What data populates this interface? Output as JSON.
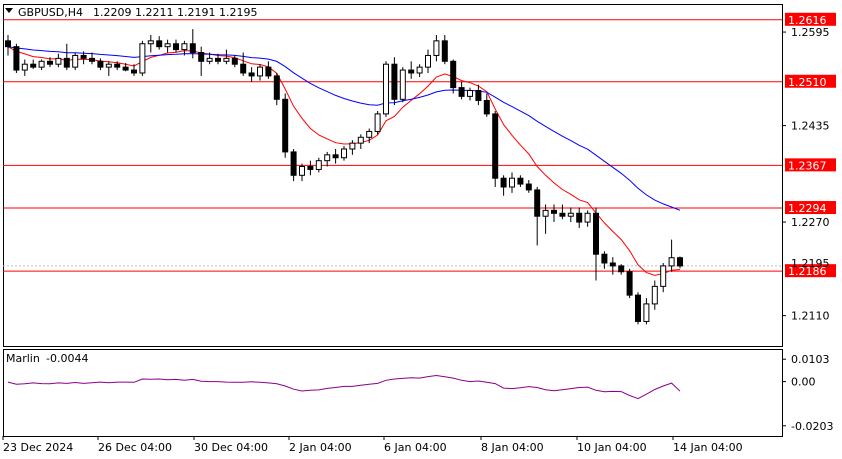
{
  "header": {
    "symbol": "GBPUSD,H4",
    "ohlc": "1.2209 1.2211 1.2191 1.2195"
  },
  "indicator": {
    "name": "Marlin",
    "value": "-0.0044"
  },
  "colors": {
    "level": "#ff0000",
    "ma_fast": "#ff0000",
    "ma_slow": "#0000ff",
    "oscillator": "#8b008b",
    "bull": "#ffffff",
    "bear": "#000000",
    "grid": "#c0c0c0"
  },
  "chart_data": {
    "type": "candlestick",
    "price_axis": {
      "min": 1.2058,
      "max": 1.2643,
      "ticks": [
        "1.2595",
        "1.2435",
        "1.2270",
        "1.2110"
      ]
    },
    "current_price": "1.2195",
    "levels": [
      "1.2616",
      "1.2510",
      "1.2367",
      "1.2294",
      "1.2186"
    ],
    "x_labels": [
      "23 Dec 2024",
      "26 Dec 04:00",
      "30 Dec 04:00",
      "2 Jan 04:00",
      "6 Jan 04:00",
      "8 Jan 04:00",
      "10 Jan 04:00",
      "14 Jan 04:00"
    ],
    "candles": [
      [
        1.258,
        1.259,
        1.2555,
        1.257
      ],
      [
        1.257,
        1.2575,
        1.2525,
        1.253
      ],
      [
        1.253,
        1.2548,
        1.252,
        1.254
      ],
      [
        1.254,
        1.2548,
        1.2532,
        1.2535
      ],
      [
        1.2535,
        1.2548,
        1.253,
        1.2545
      ],
      [
        1.2545,
        1.2552,
        1.2535,
        1.254
      ],
      [
        1.254,
        1.2558,
        1.2535,
        1.255
      ],
      [
        1.255,
        1.2575,
        1.253,
        1.2535
      ],
      [
        1.2535,
        1.256,
        1.253,
        1.2555
      ],
      [
        1.2555,
        1.2562,
        1.254,
        1.255
      ],
      [
        1.255,
        1.256,
        1.254,
        1.2545
      ],
      [
        1.2545,
        1.255,
        1.253,
        1.2535
      ],
      [
        1.2535,
        1.2545,
        1.252,
        1.254
      ],
      [
        1.254,
        1.2545,
        1.253,
        1.2535
      ],
      [
        1.2535,
        1.2542,
        1.2528,
        1.253
      ],
      [
        1.253,
        1.254,
        1.252,
        1.2525
      ],
      [
        1.2525,
        1.258,
        1.252,
        1.2575
      ],
      [
        1.2575,
        1.259,
        1.256,
        1.258
      ],
      [
        1.258,
        1.2588,
        1.2565,
        1.257
      ],
      [
        1.257,
        1.2582,
        1.256,
        1.2575
      ],
      [
        1.2575,
        1.2582,
        1.256,
        1.2565
      ],
      [
        1.2565,
        1.258,
        1.2555,
        1.2575
      ],
      [
        1.2575,
        1.26,
        1.255,
        1.256
      ],
      [
        1.256,
        1.257,
        1.252,
        1.2545
      ],
      [
        1.2545,
        1.256,
        1.254,
        1.255
      ],
      [
        1.255,
        1.2558,
        1.254,
        1.2545
      ],
      [
        1.2545,
        1.2565,
        1.254,
        1.255
      ],
      [
        1.255,
        1.2555,
        1.2535,
        1.254
      ],
      [
        1.254,
        1.256,
        1.252,
        1.2525
      ],
      [
        1.2525,
        1.2535,
        1.251,
        1.252
      ],
      [
        1.252,
        1.254,
        1.2512,
        1.2535
      ],
      [
        1.2535,
        1.2545,
        1.2515,
        1.252
      ],
      [
        1.252,
        1.2525,
        1.247,
        1.248
      ],
      [
        1.248,
        1.249,
        1.238,
        1.239
      ],
      [
        1.239,
        1.2395,
        1.234,
        1.235
      ],
      [
        1.235,
        1.237,
        1.234,
        1.2365
      ],
      [
        1.2365,
        1.2375,
        1.235,
        1.236
      ],
      [
        1.236,
        1.238,
        1.2355,
        1.2375
      ],
      [
        1.2375,
        1.239,
        1.2365,
        1.2385
      ],
      [
        1.2385,
        1.2395,
        1.237,
        1.238
      ],
      [
        1.238,
        1.24,
        1.2375,
        1.2395
      ],
      [
        1.2395,
        1.241,
        1.2385,
        1.2405
      ],
      [
        1.2405,
        1.242,
        1.2395,
        1.2415
      ],
      [
        1.2415,
        1.243,
        1.2405,
        1.2425
      ],
      [
        1.2425,
        1.246,
        1.242,
        1.2455
      ],
      [
        1.2455,
        1.2545,
        1.245,
        1.254
      ],
      [
        1.254,
        1.2552,
        1.247,
        1.248
      ],
      [
        1.248,
        1.2535,
        1.2475,
        1.253
      ],
      [
        1.253,
        1.2545,
        1.2515,
        1.2525
      ],
      [
        1.2525,
        1.254,
        1.2518,
        1.2535
      ],
      [
        1.2535,
        1.2565,
        1.2525,
        1.2555
      ],
      [
        1.2555,
        1.259,
        1.2545,
        1.258
      ],
      [
        1.258,
        1.259,
        1.254,
        1.2545
      ],
      [
        1.2545,
        1.2548,
        1.249,
        1.25
      ],
      [
        1.25,
        1.251,
        1.248,
        1.2485
      ],
      [
        1.2485,
        1.25,
        1.2478,
        1.2495
      ],
      [
        1.2495,
        1.2505,
        1.247,
        1.2478
      ],
      [
        1.2478,
        1.249,
        1.245,
        1.2455
      ],
      [
        1.2455,
        1.246,
        1.233,
        1.2345
      ],
      [
        1.2345,
        1.235,
        1.2315,
        1.233
      ],
      [
        1.233,
        1.2355,
        1.232,
        1.2345
      ],
      [
        1.2345,
        1.235,
        1.233,
        1.2335
      ],
      [
        1.2335,
        1.2342,
        1.232,
        1.2325
      ],
      [
        1.2325,
        1.233,
        1.223,
        1.228
      ],
      [
        1.228,
        1.23,
        1.225,
        1.229
      ],
      [
        1.229,
        1.23,
        1.227,
        1.2285
      ],
      [
        1.2285,
        1.23,
        1.2275,
        1.228
      ],
      [
        1.228,
        1.2295,
        1.227,
        1.2285
      ],
      [
        1.2285,
        1.2295,
        1.226,
        1.227
      ],
      [
        1.227,
        1.229,
        1.2262,
        1.2285
      ],
      [
        1.2285,
        1.2295,
        1.217,
        1.2215
      ],
      [
        1.2215,
        1.222,
        1.219,
        1.22
      ],
      [
        1.22,
        1.221,
        1.218,
        1.2195
      ],
      [
        1.2195,
        1.2198,
        1.218,
        1.2185
      ],
      [
        1.2185,
        1.219,
        1.214,
        1.2145
      ],
      [
        1.2145,
        1.215,
        1.2095,
        1.21
      ],
      [
        1.21,
        1.214,
        1.2095,
        1.213
      ],
      [
        1.213,
        1.217,
        1.212,
        1.216
      ],
      [
        1.216,
        1.22,
        1.215,
        1.2195
      ],
      [
        1.2195,
        1.224,
        1.2185,
        1.2209
      ],
      [
        1.2209,
        1.2211,
        1.2191,
        1.2195
      ]
    ],
    "oscillator": {
      "axis": {
        "min": -0.025,
        "max": 0.015,
        "ticks": [
          "0.0103",
          "0.00",
          "-0.0203"
        ]
      },
      "values": [
        -0.0002,
        -0.0012,
        -0.001,
        -0.0006,
        -0.0009,
        -0.001,
        -0.0006,
        -0.0008,
        -0.0004,
        -0.0008,
        -0.0005,
        -0.0002,
        -0.0005,
        -0.0002,
        -0.0002,
        -0.0003,
        0.0012,
        0.0011,
        0.0012,
        0.0009,
        0.001,
        0.0006,
        0.001,
        0.0002,
        0.0,
        0.0,
        -0.0002,
        -0.0003,
        -0.0003,
        -0.0001,
        -0.0003,
        -0.0006,
        -0.001,
        -0.002,
        -0.0035,
        -0.0043,
        -0.004,
        -0.0038,
        -0.0031,
        -0.0027,
        -0.0022,
        -0.0022,
        -0.0017,
        -0.0012,
        -0.0008,
        0.0006,
        0.0012,
        0.0015,
        0.0018,
        0.0016,
        0.0023,
        0.0028,
        0.0022,
        0.0016,
        0.0006,
        0.0,
        0.0003,
        -0.0003,
        -0.0009,
        -0.003,
        -0.0032,
        -0.0028,
        -0.0023,
        -0.0027,
        -0.0037,
        -0.0042,
        -0.0037,
        -0.0032,
        -0.0027,
        -0.0025,
        -0.004,
        -0.0047,
        -0.0045,
        -0.0046,
        -0.0064,
        -0.0078,
        -0.0058,
        -0.0036,
        -0.002,
        -0.0007,
        -0.0044
      ]
    }
  }
}
